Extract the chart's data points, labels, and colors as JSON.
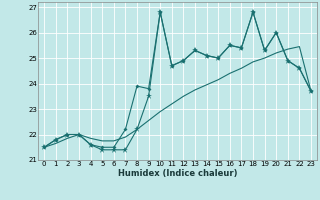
{
  "xlabel": "Humidex (Indice chaleur)",
  "background_color": "#c2e8e8",
  "line_color": "#1a7070",
  "grid_color": "#ffffff",
  "xlim": [
    -0.5,
    23.5
  ],
  "ylim": [
    21,
    27.2
  ],
  "xticks": [
    0,
    1,
    2,
    3,
    4,
    5,
    6,
    7,
    8,
    9,
    10,
    11,
    12,
    13,
    14,
    15,
    16,
    17,
    18,
    19,
    20,
    21,
    22,
    23
  ],
  "yticks": [
    21,
    22,
    23,
    24,
    25,
    26,
    27
  ],
  "s1": [
    21.5,
    21.8,
    22.0,
    22.0,
    21.6,
    21.4,
    21.4,
    21.4,
    22.2,
    23.5,
    26.8,
    24.7,
    24.9,
    25.3,
    25.1,
    25.0,
    25.5,
    25.4,
    26.8,
    25.3,
    26.0,
    24.9,
    24.6,
    23.7
  ],
  "s2": [
    21.5,
    21.8,
    22.0,
    22.0,
    21.6,
    21.5,
    21.5,
    22.2,
    23.9,
    23.8,
    26.8,
    24.7,
    24.9,
    25.3,
    25.1,
    25.0,
    25.5,
    25.4,
    26.8,
    25.3,
    26.0,
    24.9,
    24.6,
    23.7
  ],
  "s3": [
    21.5,
    21.65,
    21.85,
    22.0,
    21.85,
    21.75,
    21.75,
    21.9,
    22.2,
    22.55,
    22.9,
    23.2,
    23.5,
    23.75,
    23.95,
    24.15,
    24.4,
    24.6,
    24.85,
    25.0,
    25.2,
    25.35,
    25.45,
    23.7
  ],
  "tick_fontsize": 5.0,
  "xlabel_fontsize": 6.0
}
